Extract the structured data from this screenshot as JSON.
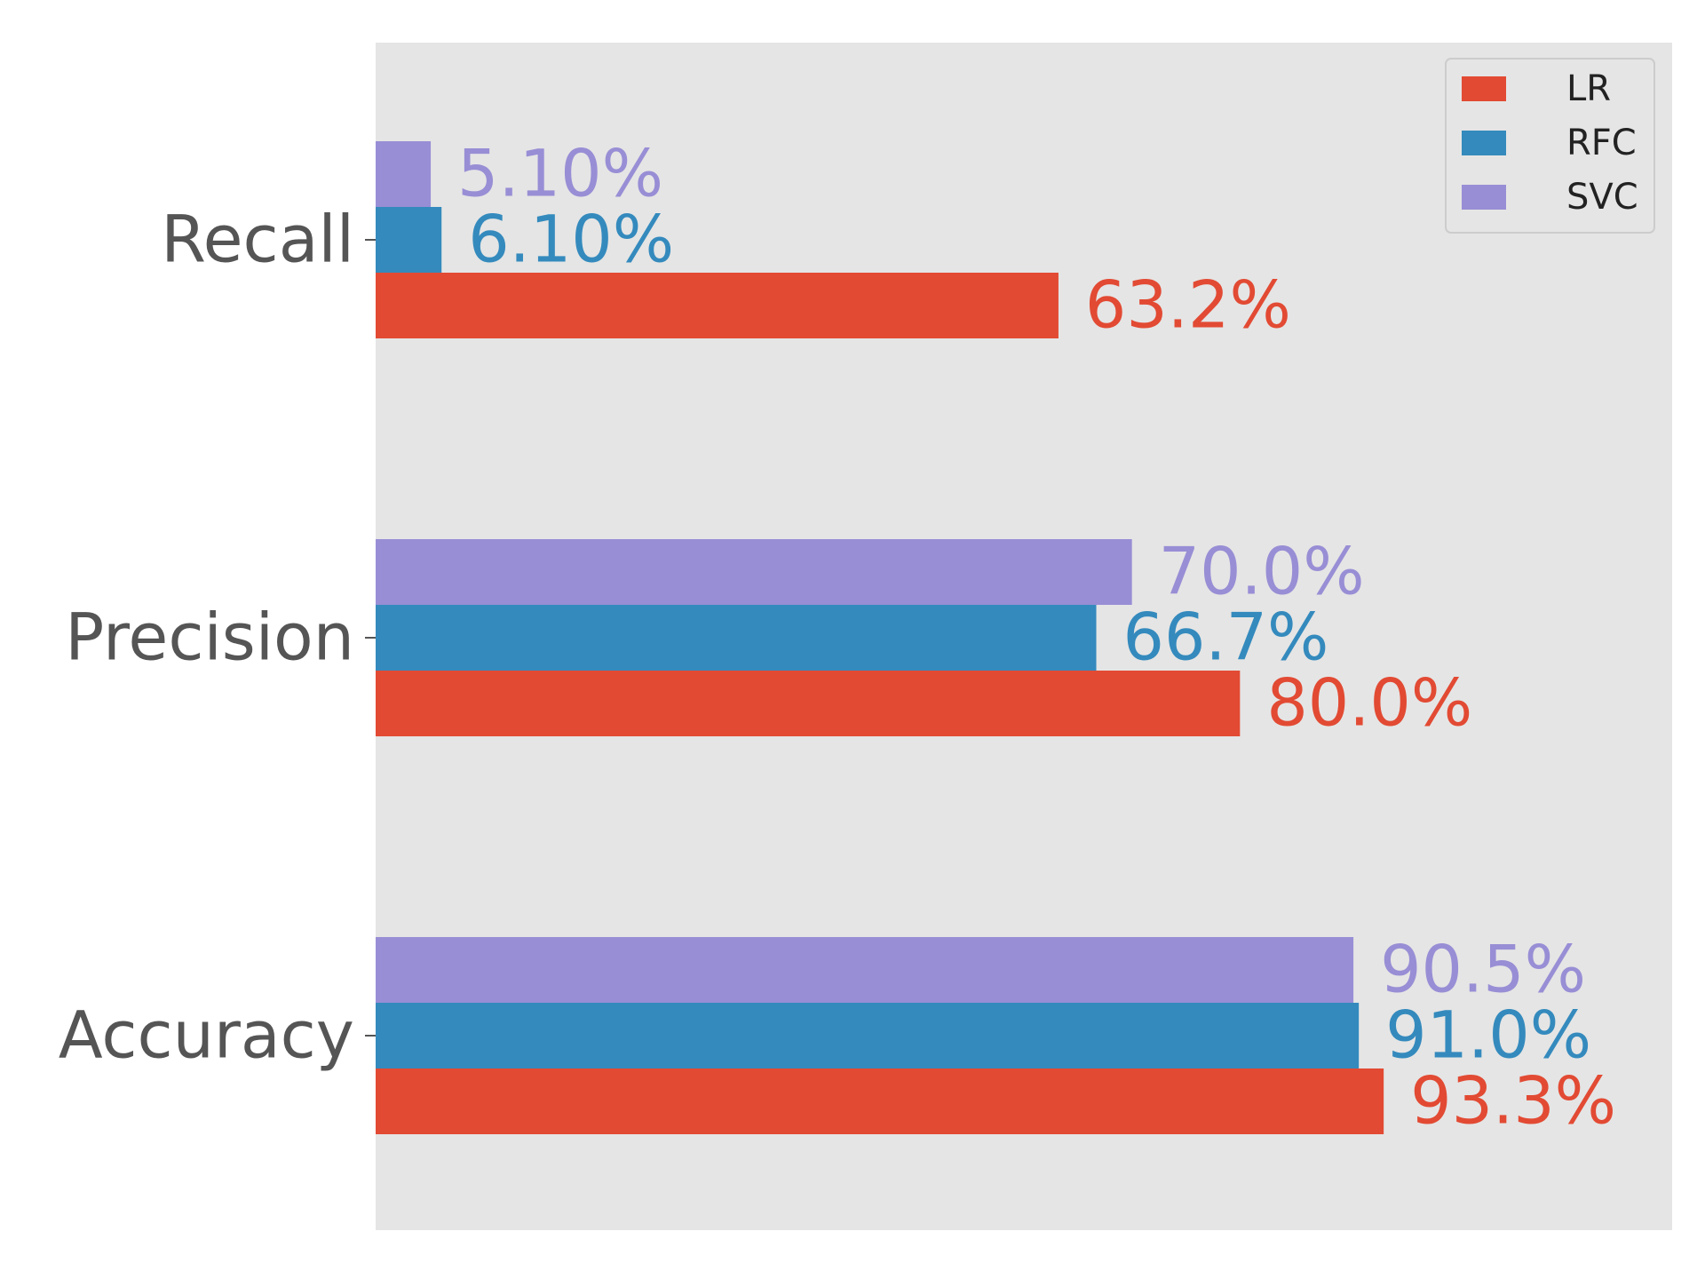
{
  "chart_data": {
    "type": "bar",
    "orientation": "horizontal",
    "title": "",
    "xlabel": "",
    "ylabel": "",
    "categories": [
      "Recall",
      "Precision",
      "Accuracy"
    ],
    "xlim": [
      0,
      1.2
    ],
    "grid": false,
    "legend_position": "top-right",
    "series": [
      {
        "name": "LR",
        "color": "#E24A33",
        "values": [
          0.632,
          0.8,
          0.933
        ],
        "labels": [
          "63.2%",
          "80.0%",
          "93.3%"
        ]
      },
      {
        "name": "RFC",
        "color": "#348ABD",
        "values": [
          0.061,
          0.667,
          0.91
        ],
        "labels": [
          "6.10%",
          "66.7%",
          "91.0%"
        ]
      },
      {
        "name": "SVC",
        "color": "#988ED5",
        "values": [
          0.051,
          0.7,
          0.905
        ],
        "labels": [
          "5.10%",
          "70.0%",
          "90.5%"
        ]
      }
    ]
  },
  "colors": {
    "plot_background": "#E5E5E5",
    "axis_text": "#555555"
  }
}
